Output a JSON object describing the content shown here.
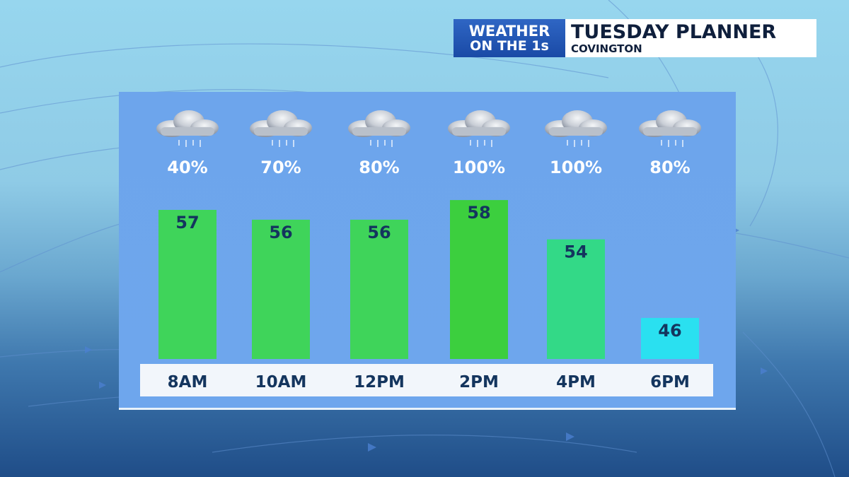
{
  "header": {
    "brand_line1": "WEATHER",
    "brand_line2": "ON THE 1s",
    "title": "TUESDAY PLANNER",
    "location": "COVINGTON"
  },
  "colors": {
    "bar_warm": "#3fd45a",
    "bar_peak": "#3ccf3e",
    "bar_mild": "#33d987",
    "bar_cool": "#2ae0f0",
    "category_strip": "#f2f6fb"
  },
  "icons": [
    "cloud-rain-icon"
  ],
  "chart_data": {
    "type": "bar",
    "categories": [
      "8AM",
      "10AM",
      "12PM",
      "2PM",
      "4PM",
      "6PM"
    ],
    "values": [
      57,
      56,
      56,
      58,
      54,
      46
    ],
    "precip_chance_labels": [
      "40%",
      "70%",
      "80%",
      "100%",
      "100%",
      "80%"
    ],
    "precip_chance": [
      40,
      70,
      80,
      100,
      100,
      80
    ],
    "bar_colors": [
      "#3fd45a",
      "#3fd45a",
      "#3fd45a",
      "#3ccf3e",
      "#33d987",
      "#2ae0f0"
    ],
    "title": "TUESDAY PLANNER",
    "subtitle": "COVINGTON",
    "xlabel": "",
    "ylabel": "",
    "grid": false,
    "legend": "none"
  }
}
